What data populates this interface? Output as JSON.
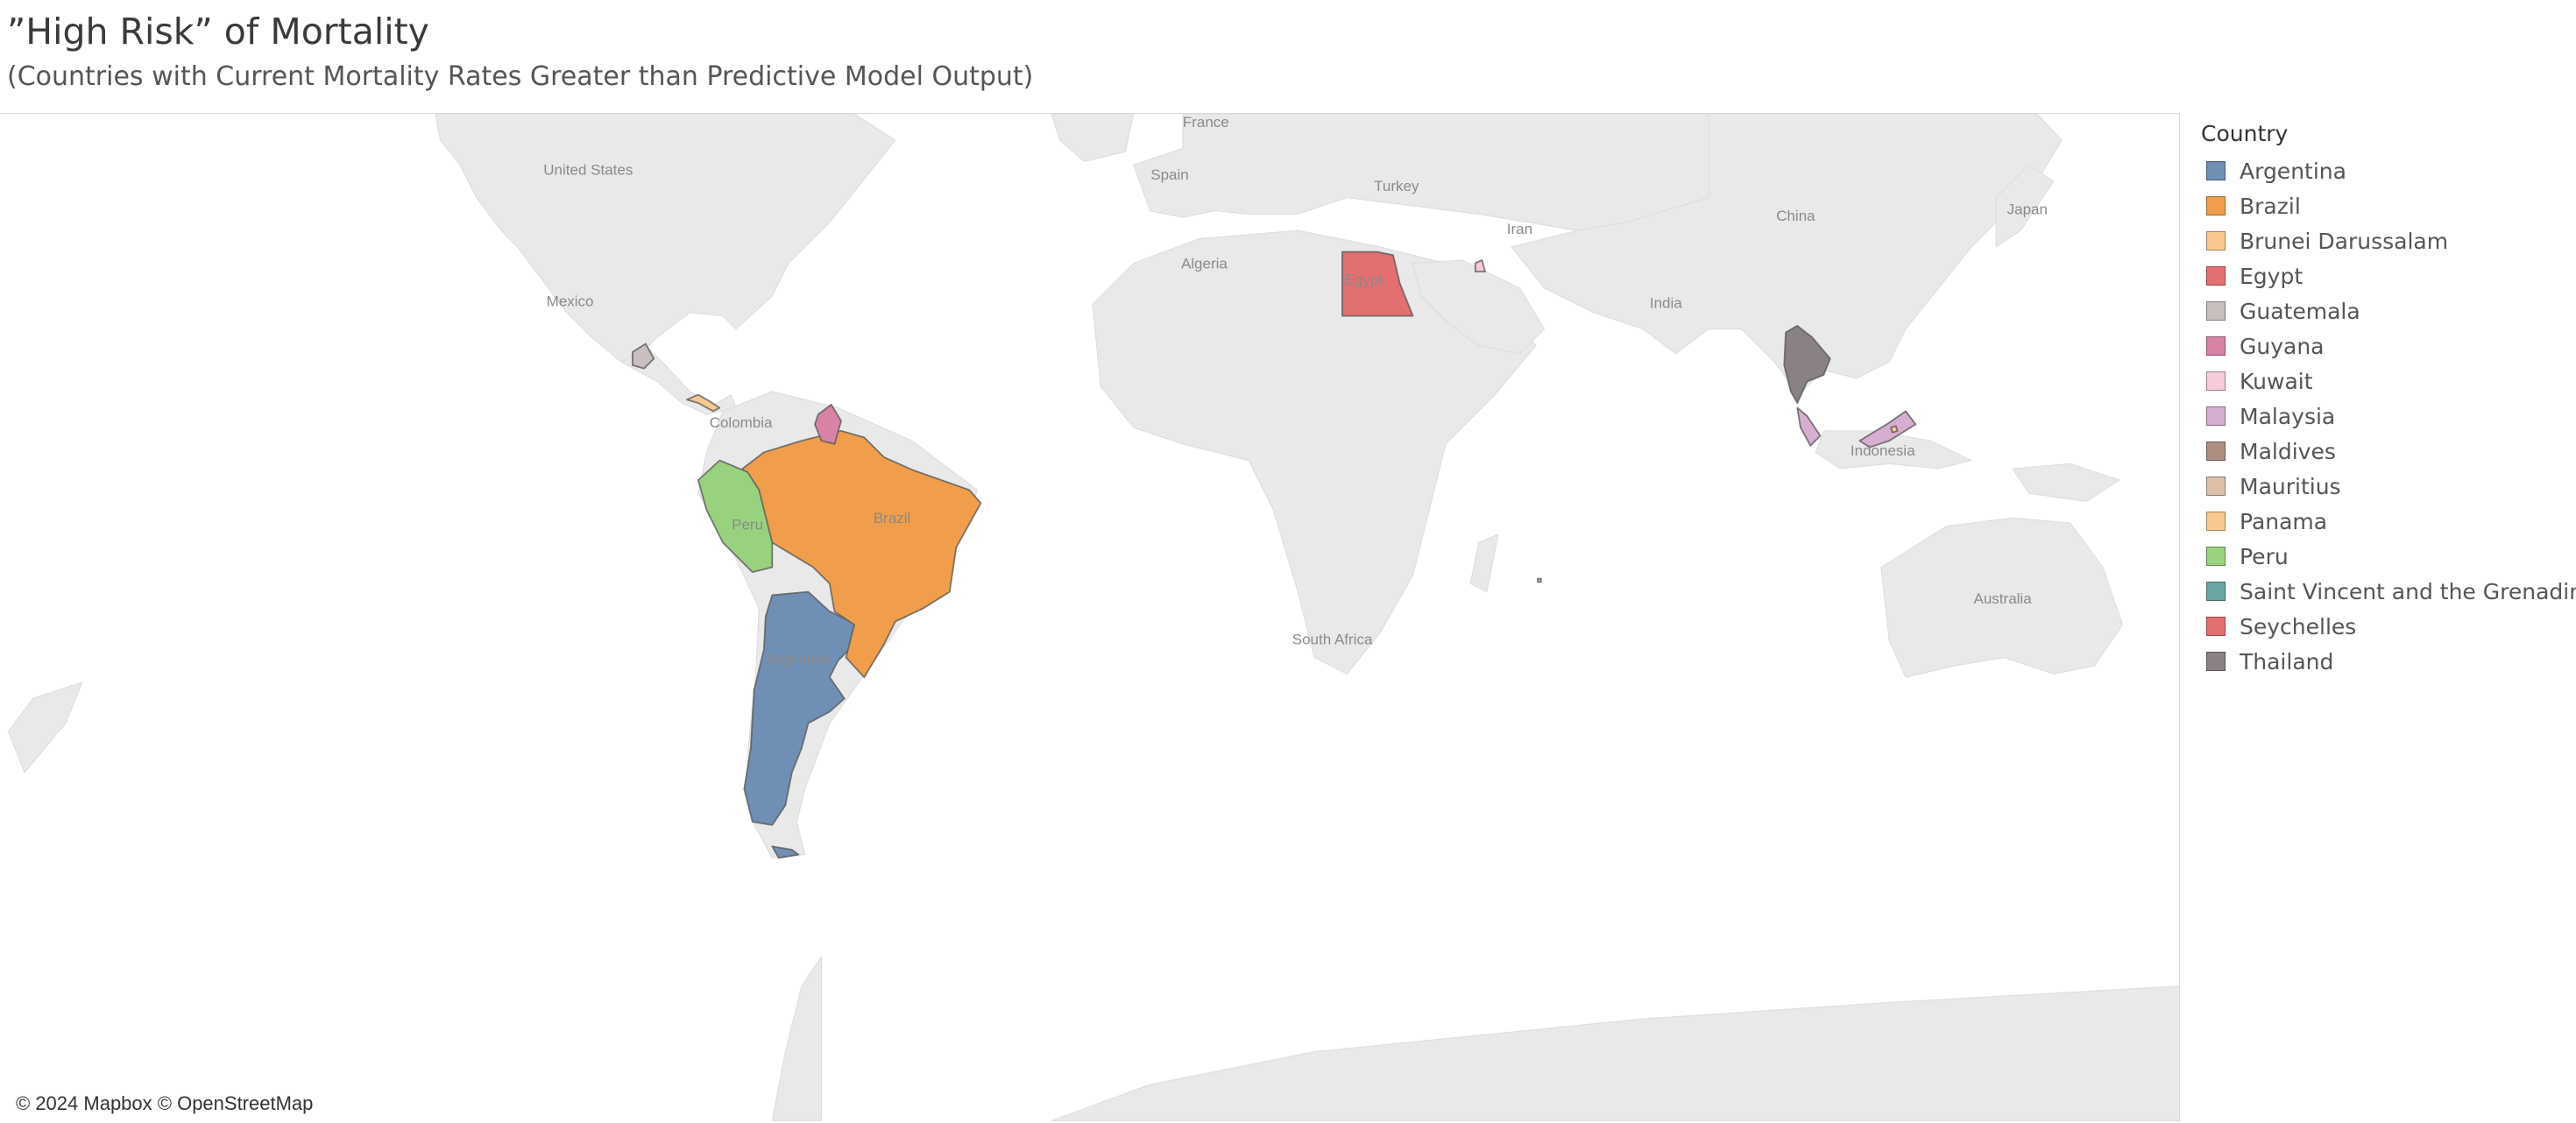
{
  "header": {
    "title": "”High Risk” of Mortality",
    "subtitle": "(Countries with Current Mortality Rates Greater than Predictive Model Output)"
  },
  "map": {
    "attribution": "© 2024 Mapbox © OpenStreetMap",
    "base_labels": [
      "France",
      "United States",
      "Spain",
      "Turkey",
      "China",
      "Japan",
      "Iran",
      "Algeria",
      "Egypt",
      "Mexico",
      "India",
      "Colombia",
      "Brazil",
      "Peru",
      "Argentina",
      "South Africa",
      "Indonesia",
      "Australia"
    ],
    "colors": {
      "land": "#e9e9e9",
      "border": "#c4c4c4",
      "ocean": "#ffffff"
    }
  },
  "legend": {
    "title": "Country",
    "items": [
      {
        "label": "Argentina",
        "color": "#6f8fb4"
      },
      {
        "label": "Brazil",
        "color": "#f09e4b"
      },
      {
        "label": "Brunei Darussalam",
        "color": "#f8c88f"
      },
      {
        "label": "Egypt",
        "color": "#e36f70"
      },
      {
        "label": "Guatemala",
        "color": "#c9bfbf"
      },
      {
        "label": "Guyana",
        "color": "#d883a5"
      },
      {
        "label": "Kuwait",
        "color": "#f6cad8"
      },
      {
        "label": "Malaysia",
        "color": "#d7aed0"
      },
      {
        "label": "Maldives",
        "color": "#ac8f80"
      },
      {
        "label": "Mauritius",
        "color": "#dcc0aa"
      },
      {
        "label": "Panama",
        "color": "#f7c98e"
      },
      {
        "label": "Peru",
        "color": "#98d27e"
      },
      {
        "label": "Saint Vincent and the Grenadines",
        "color": "#6aa7a2"
      },
      {
        "label": "Seychelles",
        "color": "#e36f70"
      },
      {
        "label": "Thailand",
        "color": "#8a8282"
      }
    ]
  }
}
